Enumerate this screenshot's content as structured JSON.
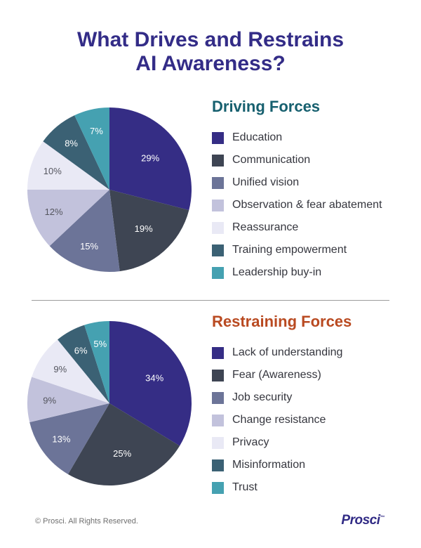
{
  "page": {
    "title_line1": "What Drives and Restrains",
    "title_line2": "AI Awareness?",
    "title_color": "#332C87",
    "background_color": "#FFFFFF"
  },
  "chart_data": [
    {
      "type": "pie",
      "title": "Driving Forces",
      "title_color": "#17606F",
      "categories": [
        "Education",
        "Communication",
        "Unified vision",
        "Observation & fear abatement",
        "Reassurance",
        "Training empowerment",
        "Leadership buy-in"
      ],
      "values": [
        29,
        19,
        15,
        12,
        10,
        8,
        7
      ],
      "labels": [
        "29%",
        "19%",
        "15%",
        "12%",
        "10%",
        "8%",
        "7%"
      ],
      "colors": [
        "#352D85",
        "#3E4553",
        "#6C7498",
        "#C2C2DC",
        "#E9E9F5",
        "#3B6174",
        "#45A1B1"
      ],
      "start_angle_deg": 0,
      "direction": "clockwise",
      "legend_position": "right",
      "labels_inside": true
    },
    {
      "type": "pie",
      "title": "Restraining Forces",
      "title_color": "#B94A21",
      "categories": [
        "Lack of understanding",
        "Fear (Awareness)",
        "Job security",
        "Change resistance",
        "Privacy",
        "Misinformation",
        "Trust"
      ],
      "values": [
        34,
        25,
        13,
        9,
        9,
        6,
        5
      ],
      "labels": [
        "34%",
        "25%",
        "13%",
        "9%",
        "9%",
        "6%",
        "5%"
      ],
      "colors": [
        "#352D85",
        "#3E4553",
        "#6C7498",
        "#C2C2DC",
        "#E9E9F5",
        "#3B6174",
        "#45A1B1"
      ],
      "start_angle_deg": 0,
      "direction": "clockwise",
      "legend_position": "right",
      "labels_inside": true
    }
  ],
  "footer": {
    "copyright": "© Prosci. All Rights Reserved.",
    "copyright_color": "#6F6F6F",
    "logo_text": "Prosci",
    "logo_mark": "™",
    "logo_color": "#312B85"
  },
  "styles": {
    "pie_label_dark": "#55565F",
    "pie_label_light": "#FFFFFF",
    "legend_text_color": "#35363E",
    "divider_color": "#9B9B9B"
  }
}
